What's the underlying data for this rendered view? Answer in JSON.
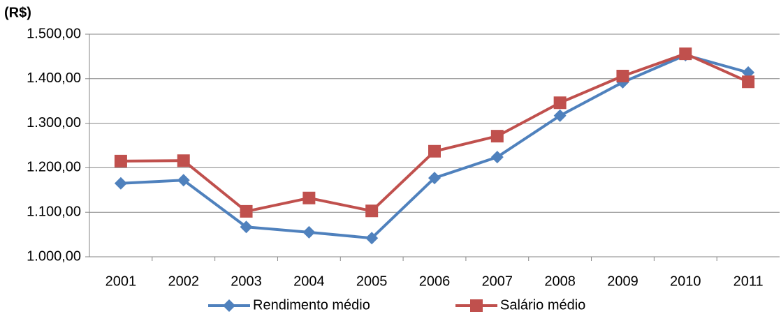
{
  "chart_data": {
    "type": "line",
    "ylabel": "(R$)",
    "categories": [
      "2001",
      "2002",
      "2003",
      "2004",
      "2005",
      "2006",
      "2007",
      "2008",
      "2009",
      "2010",
      "2011"
    ],
    "series": [
      {
        "name": "Rendimento médio",
        "color": "#4f81bd",
        "marker": "diamond",
        "values": [
          1165,
          1172,
          1067,
          1055,
          1042,
          1177,
          1224,
          1317,
          1392,
          1453,
          1414
        ]
      },
      {
        "name": "Salário médio",
        "color": "#c0504d",
        "marker": "square",
        "values": [
          1215,
          1216,
          1102,
          1132,
          1103,
          1237,
          1271,
          1346,
          1406,
          1456,
          1393
        ]
      }
    ],
    "ylim": [
      1000,
      1500
    ],
    "yticks": [
      {
        "value": 1000,
        "label": "1.000,00"
      },
      {
        "value": 1100,
        "label": "1.100,00"
      },
      {
        "value": 1200,
        "label": "1.200,00"
      },
      {
        "value": 1300,
        "label": "1.300,00"
      },
      {
        "value": 1400,
        "label": "1.400,00"
      },
      {
        "value": 1500,
        "label": "1.500,00"
      }
    ],
    "grid": true,
    "legend": "bottom"
  }
}
